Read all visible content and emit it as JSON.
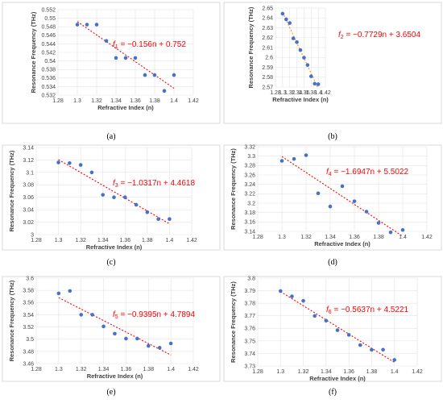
{
  "chart_data": [
    {
      "type": "scatter",
      "panel_label": "(a)",
      "xlabel": "Refractive Index (n)",
      "ylabel": "Resonance Frequency (THz)",
      "xlim": [
        1.28,
        1.42
      ],
      "ylim": [
        0.532,
        0.552
      ],
      "xticks": [
        "1.28",
        "1.3",
        "1.32",
        "1.34",
        "1.36",
        "1.38",
        "1.4",
        "1.42"
      ],
      "yticks": [
        "0.532",
        "0.534",
        "0.536",
        "0.538",
        "0.54",
        "0.542",
        "0.544",
        "0.546",
        "0.548",
        "0.55",
        "0.552"
      ],
      "grid": true,
      "marker_color": "#4472c4",
      "trendline_color": "#ff0000",
      "equation": {
        "sym": "f",
        "sub": "1",
        "rest": " = −0.156n + 0.752"
      },
      "trendline": {
        "slope": -0.156,
        "intercept": 0.752
      },
      "x": [
        1.3,
        1.31,
        1.32,
        1.33,
        1.34,
        1.35,
        1.36,
        1.37,
        1.38,
        1.39,
        1.4
      ],
      "y": [
        0.5485,
        0.5485,
        0.5485,
        0.5447,
        0.5407,
        0.5407,
        0.5407,
        0.5367,
        0.5367,
        0.533,
        0.5367
      ]
    },
    {
      "type": "scatter",
      "panel_label": "(b)",
      "xlabel": "Refractive Index (n)",
      "ylabel": "Resonance Frequency (THz)",
      "xlim": [
        1.28,
        1.42
      ],
      "ylim": [
        2.57,
        2.65
      ],
      "xticks": [
        "1.28",
        "1.3",
        "1.32",
        "1.34",
        "1.36",
        "1.38",
        "1.4",
        "1.42"
      ],
      "yticks": [
        "2.57",
        "2.58",
        "2.59",
        "2.6",
        "2.61",
        "2.62",
        "2.63",
        "2.64",
        "2.65"
      ],
      "grid": true,
      "marker_color": "#4472c4",
      "trendline_color": "#ff8c1a",
      "equation": {
        "sym": "f",
        "sub": "2",
        "rest": " = −0.7729n + 3.6504"
      },
      "trendline": {
        "slope": -0.7729,
        "intercept": 3.6504
      },
      "x": [
        1.3,
        1.31,
        1.32,
        1.33,
        1.34,
        1.35,
        1.36,
        1.37,
        1.38,
        1.39,
        1.4
      ],
      "y": [
        2.6443,
        2.6386,
        2.6349,
        2.6193,
        2.6155,
        2.6074,
        2.5998,
        2.5923,
        2.5809,
        2.5734,
        2.5729
      ]
    },
    {
      "type": "scatter",
      "panel_label": "(c)",
      "xlabel": "Refractive Index (n)",
      "ylabel": "Resonance Frequency (THz)",
      "xlim": [
        1.28,
        1.42
      ],
      "ylim": [
        3.0,
        3.14
      ],
      "xticks": [
        "1.28",
        "1.3",
        "1.32",
        "1.34",
        "1.36",
        "1.38",
        "1.4",
        "1.42"
      ],
      "yticks": [
        "3",
        "3.02",
        "3.04",
        "3.06",
        "3.08",
        "3.1",
        "3.12",
        "3.14"
      ],
      "grid": true,
      "marker_color": "#4472c4",
      "trendline_color": "#ff0000",
      "equation": {
        "sym": "f",
        "sub": "3",
        "rest": " = −1.0317n + 4.4618"
      },
      "trendline": {
        "slope": -1.0317,
        "intercept": 4.4618
      },
      "x": [
        1.3,
        1.31,
        1.32,
        1.33,
        1.34,
        1.35,
        1.36,
        1.37,
        1.38,
        1.39,
        1.4
      ],
      "y": [
        3.116,
        3.115,
        3.112,
        3.1,
        3.064,
        3.06,
        3.06,
        3.048,
        3.036,
        3.025,
        3.025
      ]
    },
    {
      "type": "scatter",
      "panel_label": "(d)",
      "xlabel": "Refractive Index (n)",
      "ylabel": "Resonance Frequency (THz)",
      "xlim": [
        1.28,
        1.42
      ],
      "ylim": [
        3.14,
        3.32
      ],
      "xticks": [
        "1.28",
        "1.3",
        "1.32",
        "1.34",
        "1.36",
        "1.38",
        "1.4",
        "1.42"
      ],
      "yticks": [
        "3.14",
        "3.16",
        "3.18",
        "3.2",
        "3.22",
        "3.24",
        "3.26",
        "3.28",
        "3.3",
        "3.32"
      ],
      "grid": true,
      "marker_color": "#4472c4",
      "trendline_color": "#ff0000",
      "equation": {
        "sym": "f",
        "sub": "4",
        "rest": " = −1.6947n + 5.5022"
      },
      "trendline": {
        "slope": -1.6947,
        "intercept": 5.5022
      },
      "x": [
        1.3,
        1.31,
        1.32,
        1.33,
        1.34,
        1.35,
        1.36,
        1.37,
        1.38,
        1.39,
        1.4
      ],
      "y": [
        3.29,
        3.294,
        3.302,
        3.221,
        3.193,
        3.236,
        3.204,
        3.182,
        3.158,
        3.138,
        3.143
      ]
    },
    {
      "type": "scatter",
      "panel_label": "(e)",
      "xlabel": "Refractive Index (n)",
      "ylabel": "Resonance Frequency (THz)",
      "xlim": [
        1.28,
        1.42
      ],
      "ylim": [
        3.46,
        3.6
      ],
      "xticks": [
        "1.28",
        "1.3",
        "1.32",
        "1.34",
        "1.36",
        "1.38",
        "1.4",
        "1.42"
      ],
      "yticks": [
        "3.46",
        "3.48",
        "3.5",
        "3.52",
        "3.54",
        "3.56",
        "3.58",
        "3.6"
      ],
      "grid": true,
      "marker_color": "#4472c4",
      "trendline_color": "#ff0000",
      "equation": {
        "sym": "f",
        "sub": "5",
        "rest": " = −0.9395n + 4.7894"
      },
      "trendline": {
        "slope": -0.9395,
        "intercept": 4.7894
      },
      "x": [
        1.3,
        1.31,
        1.32,
        1.33,
        1.34,
        1.35,
        1.36,
        1.37,
        1.38,
        1.39,
        1.4
      ],
      "y": [
        3.575,
        3.579,
        3.54,
        3.54,
        3.521,
        3.509,
        3.501,
        3.501,
        3.489,
        3.486,
        3.493
      ]
    },
    {
      "type": "scatter",
      "panel_label": "(f)",
      "xlabel": "Refractive Index (n)",
      "ylabel": "Resonance Frequency (THz)",
      "xlim": [
        1.28,
        1.42
      ],
      "ylim": [
        3.73,
        3.8
      ],
      "xticks": [
        "1.28",
        "1.3",
        "1.32",
        "1.34",
        "1.36",
        "1.38",
        "1.4",
        "1.42"
      ],
      "yticks": [
        "3.73",
        "3.74",
        "3.75",
        "3.76",
        "3.77",
        "3.78",
        "3.79",
        "3.8"
      ],
      "grid": true,
      "marker_color": "#4472c4",
      "trendline_color": "#ff0000",
      "equation": {
        "sym": "f",
        "sub": "6",
        "rest": " = −0.5637n + 4.5221"
      },
      "trendline": {
        "slope": -0.5637,
        "intercept": 4.5221
      },
      "x": [
        1.3,
        1.31,
        1.32,
        1.33,
        1.34,
        1.35,
        1.36,
        1.37,
        1.38,
        1.39,
        1.4
      ],
      "y": [
        3.7897,
        3.7855,
        3.7819,
        3.7699,
        3.7661,
        3.7585,
        3.7548,
        3.7467,
        3.7429,
        3.743,
        3.7349
      ]
    }
  ]
}
